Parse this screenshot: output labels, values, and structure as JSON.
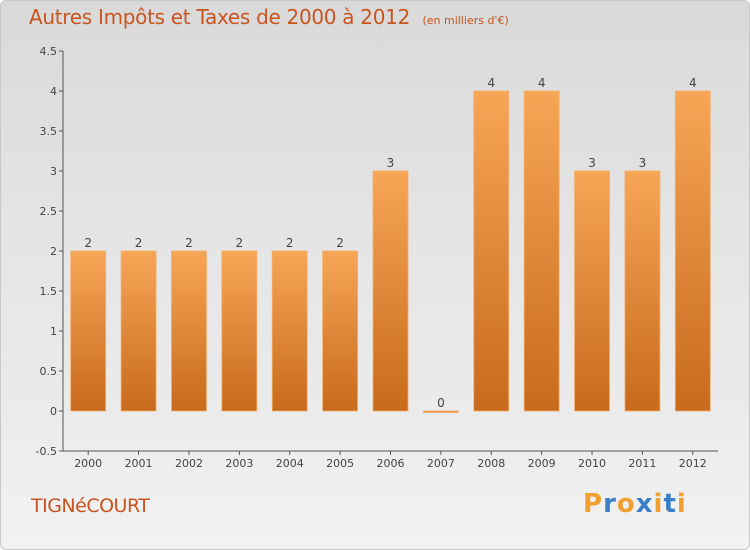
{
  "title": "Autres Impôts et Taxes de 2000 à 2012",
  "subtitle": "(en milliers d'€)",
  "commune": "TIGNéCOURT",
  "logo": {
    "letters": [
      "P",
      "r",
      "o",
      "x",
      "i",
      "t",
      "i"
    ],
    "colors": [
      "#f0a030",
      "#3a7fc8",
      "#f0a030",
      "#3a7fc8",
      "#f0a030",
      "#3a7fc8",
      "#f0a030"
    ]
  },
  "colors": {
    "bar_top": "#f7a656",
    "bar_bottom": "#c86a1c",
    "text": "#c9541e",
    "axis": "#555555"
  },
  "chart_data": {
    "type": "bar",
    "categories": [
      "2000",
      "2001",
      "2002",
      "2003",
      "2004",
      "2005",
      "2006",
      "2007",
      "2008",
      "2009",
      "2010",
      "2011",
      "2012"
    ],
    "values": [
      2,
      2,
      2,
      2,
      2,
      2,
      3,
      0,
      4,
      4,
      3,
      3,
      4
    ],
    "data_labels": [
      "2",
      "2",
      "2",
      "2",
      "2",
      "2",
      "3",
      "0",
      "4",
      "4",
      "3",
      "3",
      "4"
    ],
    "ylim": [
      -0.5,
      4.5
    ],
    "yticks": [
      -0.5,
      0,
      0.5,
      1,
      1.5,
      2,
      2.5,
      3,
      3.5,
      4,
      4.5
    ],
    "ytick_labels": [
      "-0.5",
      "0",
      "0.5",
      "1",
      "1.5",
      "2",
      "2.5",
      "3",
      "3.5",
      "4",
      "4.5"
    ],
    "grid": false
  }
}
